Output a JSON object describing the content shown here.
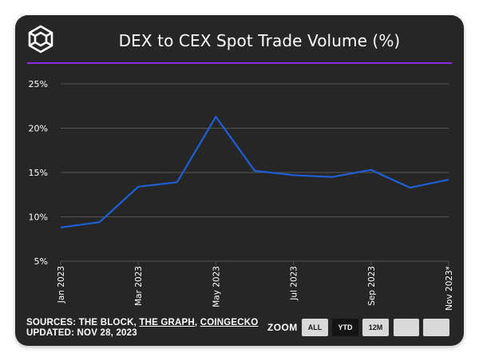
{
  "title": "DEX to CEX Spot Trade Volume (%)",
  "logo_icon": "the-block-cube-logo",
  "colors": {
    "background": "#262626",
    "accent_divider": "#8a2be2",
    "series_line": "#1f5fd6",
    "gridline": "#555555",
    "button_light": "#d9d9d9",
    "button_dark": "#141414"
  },
  "chart_data": {
    "type": "line",
    "title": "DEX to CEX Spot Trade Volume (%)",
    "xlabel": "",
    "ylabel": "",
    "x": [
      "Jan 2023",
      "Feb 2023",
      "Mar 2023",
      "Apr 2023",
      "May 2023",
      "Jun 2023",
      "Jul 2023",
      "Aug 2023",
      "Sep 2023",
      "Oct 2023",
      "Nov 2023*"
    ],
    "x_tick_labels": [
      "Jan 2023",
      "Mar 2023",
      "May 2023",
      "Jul 2023",
      "Sep 2023",
      "Nov 2023*"
    ],
    "y_tick_labels": [
      "5%",
      "10%",
      "15%",
      "20%",
      "25%"
    ],
    "y_ticks": [
      5,
      10,
      15,
      20,
      25
    ],
    "ylim": [
      5,
      25
    ],
    "grid": true,
    "series": [
      {
        "values": [
          8.8,
          9.4,
          13.4,
          13.9,
          21.3,
          15.2,
          14.7,
          14.5,
          15.3,
          13.3,
          14.2
        ]
      }
    ]
  },
  "footer": {
    "sources_prefix": "SOURCES: THE BLOCK, ",
    "source_the_graph": "THE GRAPH",
    "sources_sep": ", ",
    "source_coingecko": "COINGECKO",
    "updated": "UPDATED: NOV 28, 2023"
  },
  "zoom": {
    "label": "ZOOM",
    "buttons": [
      {
        "label": "ALL",
        "state": "light"
      },
      {
        "label": "YTD",
        "state": "dark"
      },
      {
        "label": "12M",
        "state": "light"
      },
      {
        "label": "",
        "state": "light"
      },
      {
        "label": "",
        "state": "light"
      }
    ]
  }
}
